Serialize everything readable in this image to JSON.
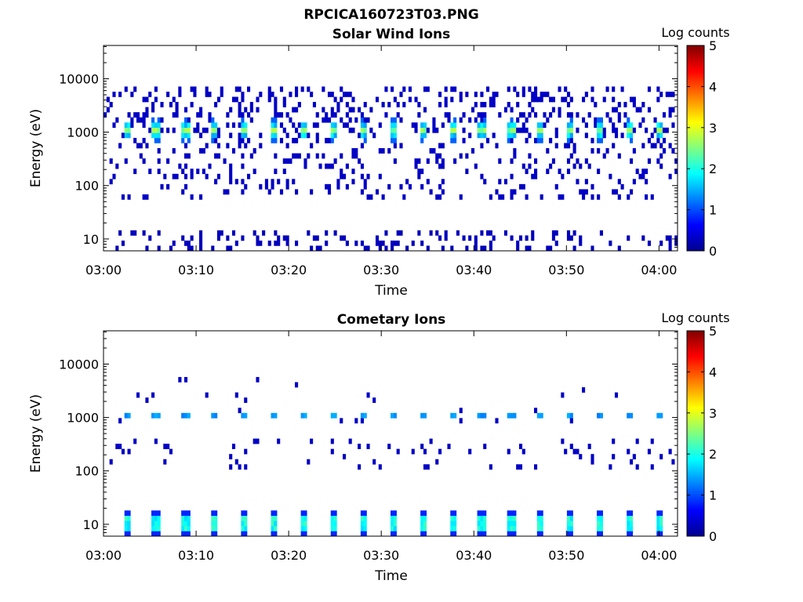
{
  "figure_title": "RPCICA160723T03.PNG",
  "colormap": {
    "stops": [
      "#00008f",
      "#0000ff",
      "#0080ff",
      "#00ffff",
      "#80ff80",
      "#ffff00",
      "#ff8000",
      "#ff0000",
      "#800000"
    ]
  },
  "chart_data": [
    {
      "type": "heatmap",
      "title": "Solar Wind Ions",
      "xlabel": "Time",
      "ylabel": "Energy (eV)",
      "x_range": [
        "03:00",
        "04:02"
      ],
      "y_range_eV": [
        6,
        42000
      ],
      "y_scale": "log",
      "x_ticks": [
        "03:00",
        "03:10",
        "03:20",
        "03:30",
        "03:40",
        "03:50",
        "04:00"
      ],
      "y_ticks": [
        "10",
        "100",
        "1000",
        "10000"
      ],
      "colorbar": {
        "label": "Log counts",
        "ticks": [
          "0",
          "1",
          "2",
          "3",
          "4",
          "5"
        ],
        "range": [
          0,
          5
        ]
      },
      "features": {
        "periodic_peaks": {
          "energy_eV": 1000,
          "period_min": 3.2,
          "first_min": 2.2,
          "peak_log_counts": 3.0
        },
        "background_scatter": {
          "log_counts": 0.3
        },
        "low_energy_bursts": {
          "energy_eV_range": [
            6,
            15
          ],
          "log_counts": 0.2
        }
      }
    },
    {
      "type": "heatmap",
      "title": "Cometary Ions",
      "xlabel": "Time",
      "ylabel": "Energy (eV)",
      "x_range": [
        "03:00",
        "04:02"
      ],
      "y_range_eV": [
        6,
        42000
      ],
      "y_scale": "log",
      "x_ticks": [
        "03:00",
        "03:10",
        "03:20",
        "03:30",
        "03:40",
        "03:50",
        "04:00"
      ],
      "y_ticks": [
        "10",
        "100",
        "1000",
        "10000"
      ],
      "colorbar": {
        "label": "Log counts",
        "ticks": [
          "0",
          "1",
          "2",
          "3",
          "4",
          "5"
        ],
        "range": [
          0,
          5
        ]
      },
      "features": {
        "periodic_peaks": {
          "energy_eV": 1000,
          "period_min": 3.2,
          "first_min": 2.2,
          "peak_log_counts": 1.5
        },
        "low_energy_columns": {
          "energy_eV_range": [
            6,
            22
          ],
          "period_min": 3.2,
          "peak_log_counts": 2.2
        },
        "background_scatter": {
          "log_counts": 0.3
        }
      }
    }
  ]
}
